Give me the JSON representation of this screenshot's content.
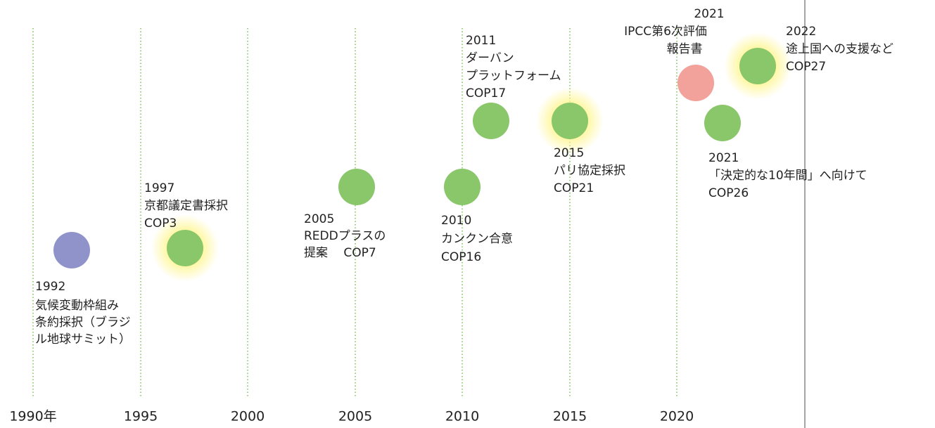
{
  "axis_labels": [
    "1990年",
    "1995",
    "2000",
    "2005",
    "2010",
    "2015",
    "2020"
  ],
  "events": [
    {
      "lines": [
        "1992",
        "気候変動枠組み",
        "条約採択（ブラジ",
        "ル地球サミット）"
      ]
    },
    {
      "lines": [
        "1997",
        "京都議定書採択",
        "COP3"
      ]
    },
    {
      "lines": [
        "2005",
        "REDDプラスの",
        "提案　 COP7"
      ]
    },
    {
      "lines": [
        "2010",
        "カンクン合意",
        "COP16"
      ]
    },
    {
      "lines": [
        "2011",
        "ダーバン",
        "プラットフォーム",
        "COP17"
      ]
    },
    {
      "lines": [
        "2015",
        "パリ協定採択",
        "COP21"
      ]
    },
    {
      "lines": [
        "2021",
        "IPCC第6次評価",
        "報告書"
      ]
    },
    {
      "lines": [
        "2021",
        "「決定的な10年間」へ向けて",
        "COP26"
      ]
    },
    {
      "lines": [
        "2022",
        "途上国への支援など",
        "COP27"
      ]
    }
  ]
}
